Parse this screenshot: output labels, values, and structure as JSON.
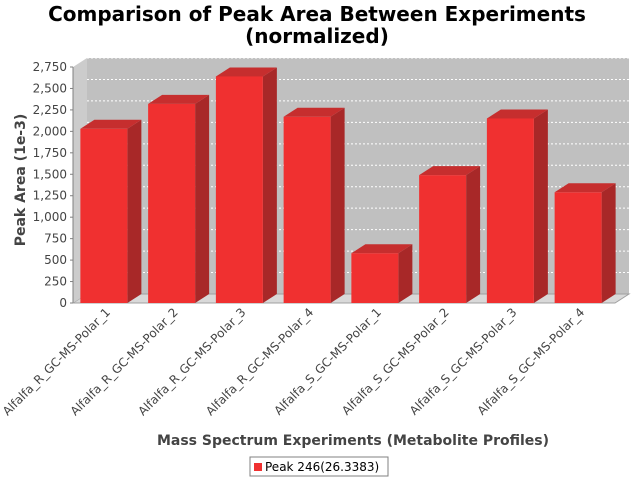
{
  "chart_data": {
    "type": "bar",
    "title": "Comparison of Peak Area Between Experiments",
    "subtitle": "(normalized)",
    "xlabel": "Mass Spectrum Experiments (Metabolite Profiles)",
    "ylabel": "Peak Area (1e-3)",
    "ylim": [
      0,
      2750
    ],
    "yticks": [
      0,
      250,
      500,
      750,
      1000,
      1250,
      1500,
      1750,
      2000,
      2250,
      2500,
      2750
    ],
    "ytick_labels": [
      "0",
      "250",
      "500",
      "750",
      "1,000",
      "1,250",
      "1,500",
      "1,750",
      "2,000",
      "2,250",
      "2,500",
      "2,750"
    ],
    "grid": true,
    "legend_placement": "bottom-center",
    "categories": [
      "Alfalfa_R_GC-MS-Polar_1",
      "Alfalfa_R_GC-MS-Polar_2",
      "Alfalfa_R_GC-MS-Polar_3",
      "Alfalfa_R_GC-MS-Polar_4",
      "Alfalfa_S_GC-MS-Polar_1",
      "Alfalfa_S_GC-MS-Polar_2",
      "Alfalfa_S_GC-MS-Polar_3",
      "Alfalfa_S_GC-MS-Polar_4"
    ],
    "series": [
      {
        "name": "Peak 246(26.3383)",
        "color": "#f03030",
        "values": [
          2030,
          2320,
          2640,
          2170,
          580,
          1490,
          2150,
          1290
        ]
      }
    ]
  }
}
